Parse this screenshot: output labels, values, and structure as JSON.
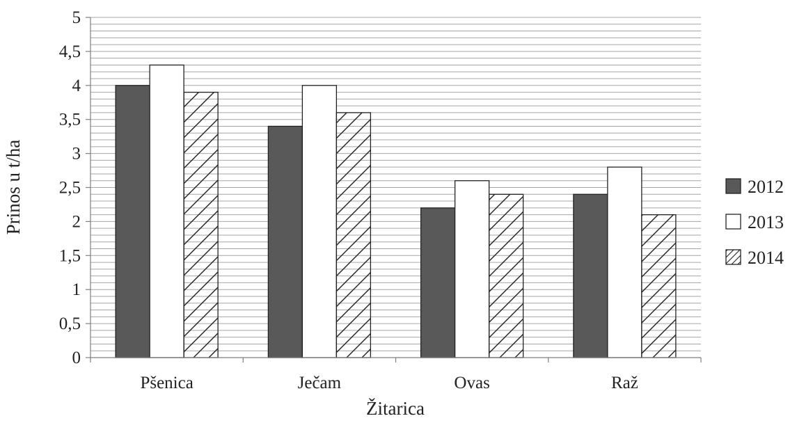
{
  "chart_data": {
    "type": "bar",
    "title": "",
    "xlabel": "Žitarica",
    "ylabel": "Prinos u  t/ha",
    "categories": [
      "Pšenica",
      "Ječam",
      "Ovas",
      "Raž"
    ],
    "series": [
      {
        "name": "2012",
        "values": [
          4.0,
          3.4,
          2.2,
          2.4
        ],
        "fill": "#595959",
        "pattern": "solid"
      },
      {
        "name": "2013",
        "values": [
          4.3,
          4.0,
          2.6,
          2.8
        ],
        "fill": "#ffffff",
        "pattern": "solid"
      },
      {
        "name": "2014",
        "values": [
          3.9,
          3.6,
          2.4,
          2.1
        ],
        "fill": "#ffffff",
        "pattern": "diagonal-hatch"
      }
    ],
    "ylim": [
      0,
      5
    ],
    "yticks": [
      0,
      0.5,
      1,
      1.5,
      2,
      2.5,
      3,
      3.5,
      4,
      4.5,
      5
    ],
    "ytick_labels": [
      "0",
      "0,5",
      "1",
      "1,5",
      "2",
      "2,5",
      "3",
      "3,5",
      "4",
      "4,5",
      "5"
    ],
    "grid": true,
    "legend_position": "right"
  }
}
